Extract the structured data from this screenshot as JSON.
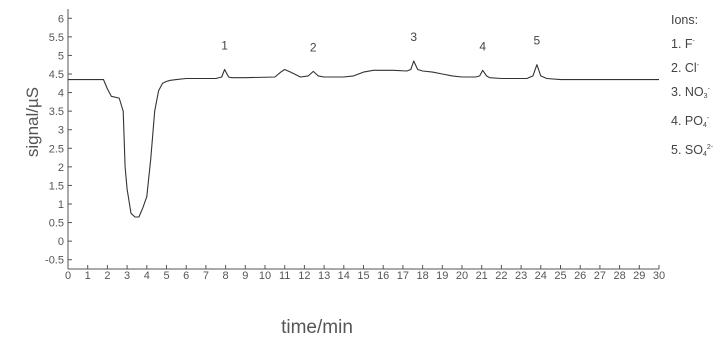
{
  "chart_data": {
    "type": "line",
    "title": "",
    "xlabel": "time/min",
    "ylabel": "signal/µS",
    "xlim": [
      0,
      30
    ],
    "ylim": [
      -0.75,
      6.25
    ],
    "x_ticks": [
      "0",
      "1",
      "2",
      "3",
      "4",
      "5",
      "6",
      "7",
      "8",
      "9",
      "10",
      "11",
      "12",
      "13",
      "14",
      "15",
      "16",
      "17",
      "18",
      "19",
      "20",
      "21",
      "22",
      "23",
      "24",
      "25",
      "26",
      "27",
      "28",
      "29",
      "30"
    ],
    "y_ticks": [
      "-0.5",
      "0",
      "0.5",
      "1",
      "1.5",
      "2",
      "2.5",
      "3",
      "3.5",
      "4",
      "4.5",
      "5",
      "5.5",
      "6"
    ],
    "grid": false,
    "peak_labels": [
      {
        "text": "1",
        "x": 7.95,
        "y": 4.62
      },
      {
        "text": "2",
        "x": 12.45,
        "y": 4.57
      },
      {
        "text": "3",
        "x": 17.55,
        "y": 4.85
      },
      {
        "text": "4",
        "x": 21.05,
        "y": 4.6
      },
      {
        "text": "5",
        "x": 23.8,
        "y": 4.75
      }
    ],
    "legend": {
      "title": "Ions:",
      "items": [
        {
          "num": "1.",
          "base": "F",
          "sub": "",
          "sup": "-"
        },
        {
          "num": "2.",
          "base": "Cl",
          "sub": "",
          "sup": "-"
        },
        {
          "num": "3.",
          "base": "NO",
          "sub": "3",
          "sup": "-"
        },
        {
          "num": "4.",
          "base": "PO",
          "sub": "4",
          "sup": "-"
        },
        {
          "num": "5.",
          "base": "SO",
          "sub": "4",
          "sup": "2-"
        }
      ]
    },
    "series": [
      {
        "color": "#333333",
        "x": [
          0,
          1.8,
          2.0,
          2.2,
          2.6,
          2.8,
          2.9,
          3.0,
          3.2,
          3.4,
          3.6,
          3.8,
          4.0,
          4.2,
          4.4,
          4.6,
          4.8,
          5.0,
          5.2,
          5.5,
          6.0,
          7.5,
          7.8,
          7.95,
          8.15,
          8.3,
          9.0,
          10.5,
          10.8,
          11.0,
          11.3,
          11.8,
          12.2,
          12.45,
          12.7,
          13.0,
          14.0,
          14.5,
          15.0,
          15.5,
          16.5,
          17.2,
          17.4,
          17.55,
          17.75,
          18.0,
          18.5,
          19.0,
          19.5,
          20.0,
          20.7,
          20.9,
          21.05,
          21.25,
          21.4,
          22.0,
          23.3,
          23.6,
          23.8,
          24.0,
          24.3,
          25.0,
          30.0
        ],
        "y": [
          4.35,
          4.35,
          4.1,
          3.9,
          3.85,
          3.5,
          2.0,
          1.4,
          0.75,
          0.65,
          0.65,
          0.9,
          1.2,
          2.2,
          3.5,
          4.05,
          4.25,
          4.3,
          4.33,
          4.35,
          4.38,
          4.38,
          4.42,
          4.62,
          4.42,
          4.4,
          4.4,
          4.42,
          4.55,
          4.62,
          4.55,
          4.42,
          4.45,
          4.57,
          4.45,
          4.42,
          4.42,
          4.45,
          4.55,
          4.6,
          4.6,
          4.58,
          4.62,
          4.85,
          4.62,
          4.58,
          4.55,
          4.5,
          4.45,
          4.42,
          4.42,
          4.45,
          4.6,
          4.45,
          4.4,
          4.38,
          4.38,
          4.45,
          4.75,
          4.45,
          4.38,
          4.35,
          4.35
        ]
      }
    ]
  }
}
